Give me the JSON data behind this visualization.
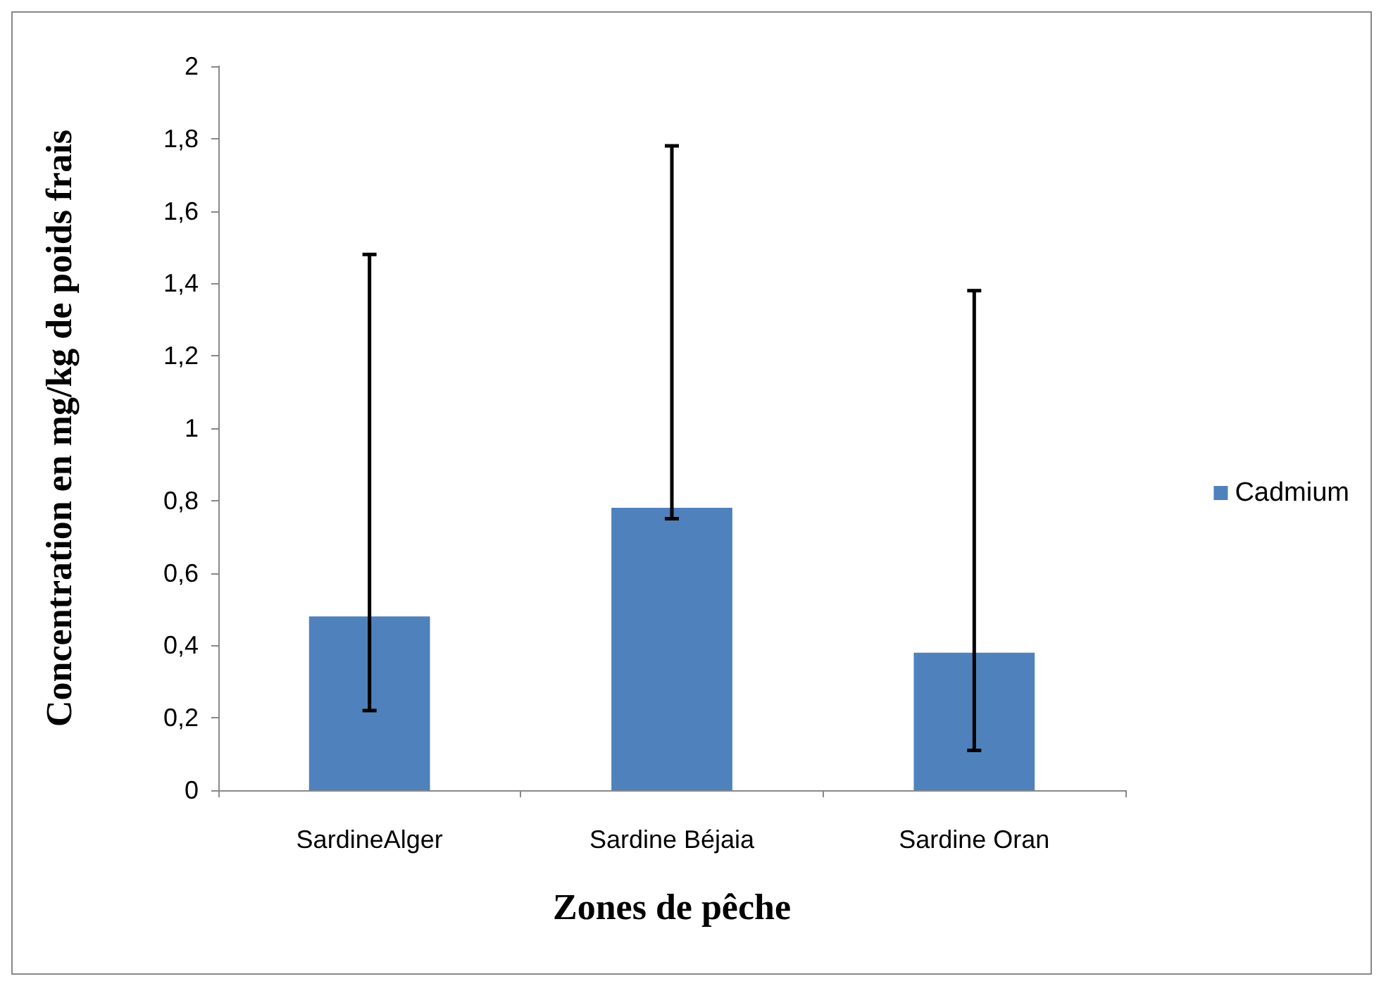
{
  "chart_data": {
    "type": "bar",
    "xlabel": "Zones de pêche",
    "ylabel": "Concentration en mg/kg de poids frais",
    "categories": [
      "SardineAlger",
      "Sardine Béjaia",
      "Sardine Oran"
    ],
    "series": [
      {
        "name": "Cadmium",
        "color": "#4f81bd",
        "values": [
          0.48,
          0.78,
          0.38
        ],
        "errors": [
          [
            0.22,
            1.48
          ],
          [
            0.75,
            1.78
          ],
          [
            0.11,
            1.38
          ]
        ]
      }
    ],
    "ylim": [
      0,
      2
    ],
    "yticks": [
      0,
      {
        "value": 0.2,
        "label": "0,2"
      },
      {
        "value": 0.4,
        "label": "0,4"
      },
      {
        "value": 0.6,
        "label": "0,6"
      },
      {
        "value": 0.8,
        "label": "0,8"
      },
      1,
      {
        "value": 1.2,
        "label": "1,2"
      },
      {
        "value": 1.4,
        "label": "1,4"
      },
      {
        "value": 1.6,
        "label": "1,6"
      },
      {
        "value": 1.8,
        "label": "1,8"
      },
      2
    ],
    "grid": false,
    "legend": "right"
  }
}
